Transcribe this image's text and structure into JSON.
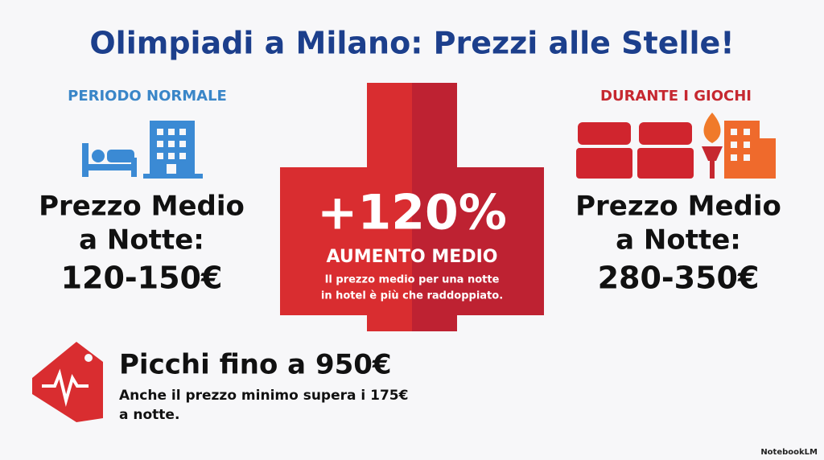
{
  "header": {
    "title": "Olimpiadi a Milano: Prezzi alle Stelle!"
  },
  "left": {
    "heading": "PERIODO NORMALE",
    "label_lines": [
      "Prezzo Medio",
      "a Notte:"
    ],
    "price": "120-150€"
  },
  "center": {
    "percent": "+120%",
    "caption": "AUMENTO MEDIO",
    "note_lines": [
      "Il prezzo medio per una notte",
      "in hotel è più che raddoppiato."
    ]
  },
  "right": {
    "heading": "DURANTE I GIOCHI",
    "label_lines": [
      "Prezzo Medio",
      "a Notte:"
    ],
    "price": "280-350€"
  },
  "peak": {
    "title": "Picchi fino a 950€",
    "lines": [
      "Anche il prezzo minimo supera i 175€",
      "a notte."
    ]
  },
  "footer": {
    "brand": "NotebookLM"
  }
}
